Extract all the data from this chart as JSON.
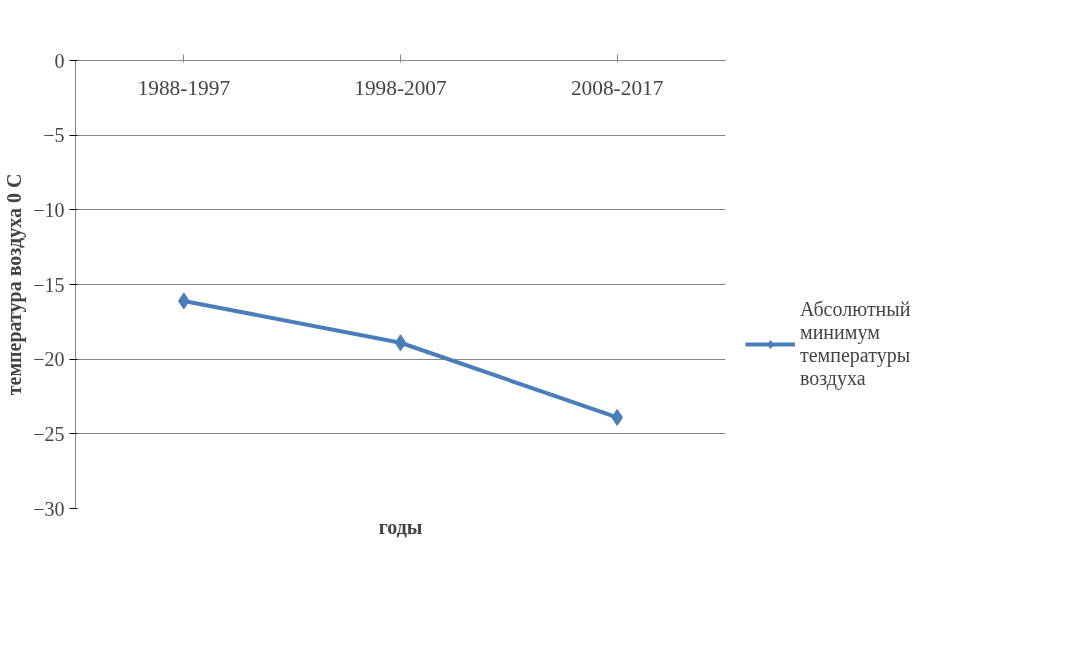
{
  "chart_data": {
    "type": "line",
    "xlabel": "годы",
    "ylabel": "температура воздуха 0 С",
    "categories": [
      "1988-1997",
      "1998-2007",
      "2008-2017"
    ],
    "series": [
      {
        "name": "Абсолютный минимум температуры воздуха",
        "color": "#4a7ebb",
        "values": [
          -16.1,
          -18.9,
          -23.9
        ]
      }
    ],
    "ylim": [
      -30,
      0
    ],
    "yticks": [
      -30,
      -25,
      -20,
      -15,
      -10,
      -5,
      0
    ],
    "grid": "y",
    "legend": "right",
    "marker": "diamond",
    "line_style": "solid"
  }
}
